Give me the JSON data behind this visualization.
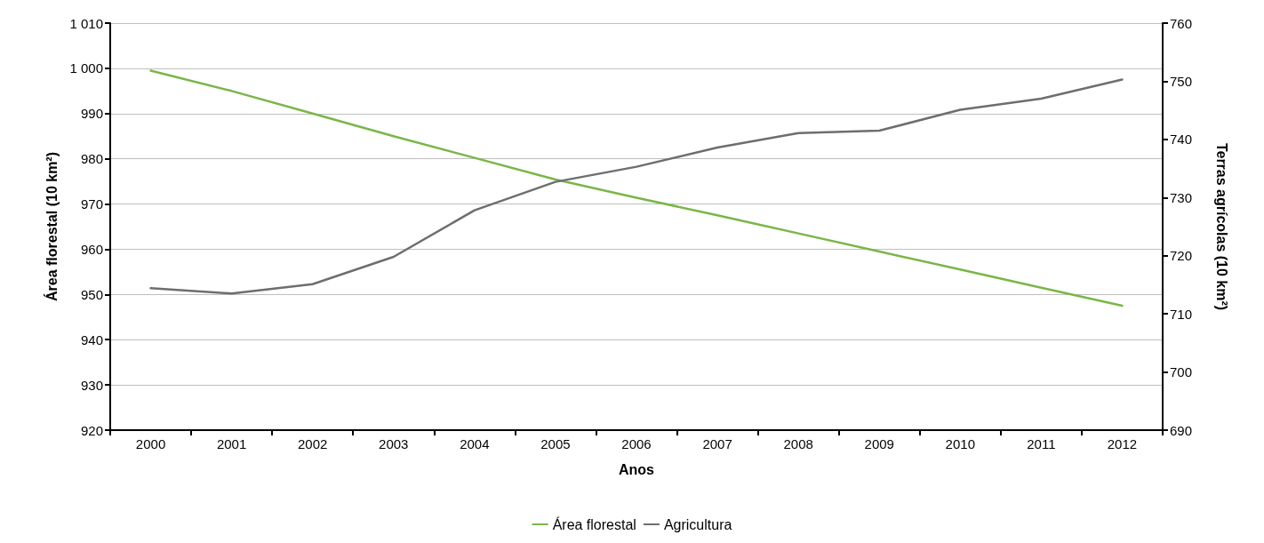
{
  "chart_data": {
    "type": "line",
    "xlabel": "Anos",
    "ylabel": "Área florestal (10 km²)",
    "y2label": "Terras agrícolas (10 km²)",
    "categories": [
      "2000",
      "2001",
      "2002",
      "2003",
      "2004",
      "2005",
      "2006",
      "2007",
      "2008",
      "2009",
      "2010",
      "2011",
      "2012"
    ],
    "series": [
      {
        "name": "Área florestal",
        "color": "#7ab648",
        "values": [
          999.5,
          995,
          990,
          985,
          980.2,
          975.4,
          971.4,
          967.5,
          963.5,
          959.5,
          955.5,
          951.5,
          947.5
        ]
      },
      {
        "name": "Agricultura",
        "color": "#6d6e71",
        "axis": "y2",
        "values": [
          714.4,
          713.5,
          715.1,
          719.8,
          727.8,
          732.7,
          735.3,
          738.6,
          741.1,
          741.5,
          745.1,
          747,
          750.3
        ]
      }
    ],
    "ylim": [
      920,
      1010
    ],
    "yticks": [
      920,
      930,
      940,
      950,
      960,
      970,
      980,
      990,
      {
        "value": 1000,
        "label": "1 000"
      },
      {
        "value": 1010,
        "label": "1 010"
      }
    ],
    "y2lim": [
      690,
      760
    ],
    "y2ticks": [
      690,
      700,
      710,
      720,
      730,
      740,
      750,
      760
    ],
    "grid": "y",
    "legend": "bottom",
    "marker": "none",
    "line_style": "solid"
  }
}
